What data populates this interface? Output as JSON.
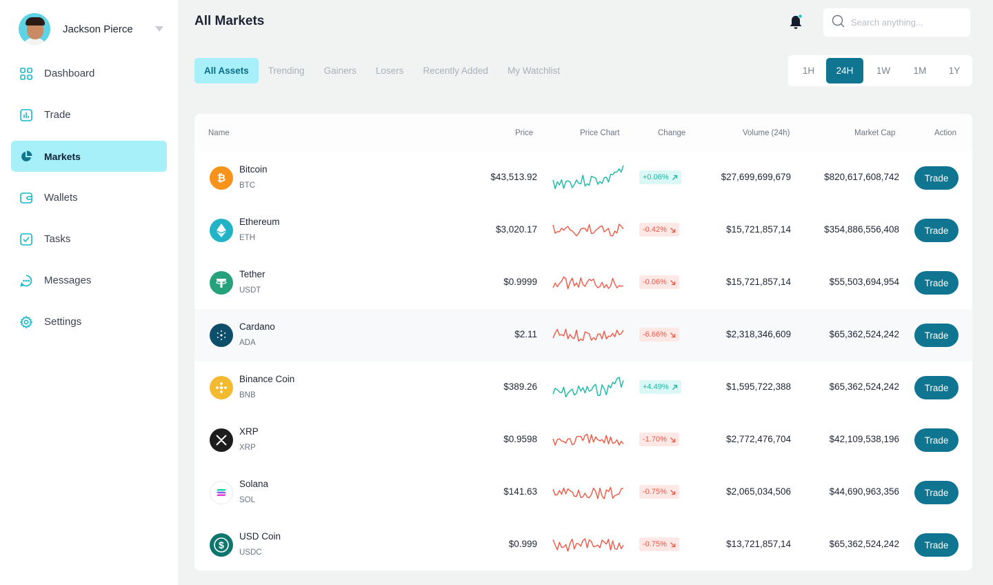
{
  "user": {
    "name": "Jackson Pierce"
  },
  "nav": [
    {
      "label": "Dashboard",
      "icon": "grid-icon",
      "active": false
    },
    {
      "label": "Trade",
      "icon": "bar-chart-icon",
      "active": false
    },
    {
      "label": "Markets",
      "icon": "pie-chart-icon",
      "active": true
    },
    {
      "label": "Wallets",
      "icon": "wallet-icon",
      "active": false
    },
    {
      "label": "Tasks",
      "icon": "checkbox-icon",
      "active": false
    },
    {
      "label": "Messages",
      "icon": "chat-icon",
      "active": false
    },
    {
      "label": "Settings",
      "icon": "gear-icon",
      "active": false
    }
  ],
  "header": {
    "title": "All Markets",
    "search_placeholder": "Search anything..."
  },
  "tabs": [
    {
      "label": "All Assets",
      "active": true
    },
    {
      "label": "Trending",
      "active": false
    },
    {
      "label": "Gainers",
      "active": false
    },
    {
      "label": "Losers",
      "active": false
    },
    {
      "label": "Recently Added",
      "active": false
    },
    {
      "label": "My Watchlist",
      "active": false
    }
  ],
  "timeframes": [
    {
      "label": "1H",
      "active": false
    },
    {
      "label": "24H",
      "active": true
    },
    {
      "label": "1W",
      "active": false
    },
    {
      "label": "1M",
      "active": false
    },
    {
      "label": "1Y",
      "active": false
    }
  ],
  "table": {
    "columns": {
      "name": "Name",
      "price": "Price",
      "chart": "Price Chart",
      "change": "Change",
      "volume": "Volume (24h)",
      "market_cap": "Market Cap",
      "action": "Action"
    },
    "action_label": "Trade",
    "colors": {
      "up": "#15b8a4",
      "down": "#ef5643"
    },
    "rows": [
      {
        "name": "Bitcoin",
        "symbol": "BTC",
        "price": "$43,513.92",
        "change": "+0.06%",
        "direction": "up",
        "volume": "$27,699,699,679",
        "market_cap": "$820,617,608,742",
        "icon": "bitcoin-icon",
        "icon_color": "#f7931a",
        "highlight": false
      },
      {
        "name": "Ethereum",
        "symbol": "ETH",
        "price": "$3,020.17",
        "change": "-0.42%",
        "direction": "down",
        "volume": "$15,721,857,14",
        "market_cap": "$354,886,556,408",
        "icon": "ethereum-icon",
        "icon_color": "#22b3c7",
        "highlight": false
      },
      {
        "name": "Tether",
        "symbol": "USDT",
        "price": "$0.9999",
        "change": "-0.06%",
        "direction": "down",
        "volume": "$15,721,857,14",
        "market_cap": "$55,503,694,954",
        "icon": "tether-icon",
        "icon_color": "#26a17b",
        "highlight": false
      },
      {
        "name": "Cardano",
        "symbol": "ADA",
        "price": "$2.11",
        "change": "-6.66%",
        "direction": "down",
        "volume": "$2,318,346,609",
        "market_cap": "$65,362,524,242",
        "icon": "cardano-icon",
        "icon_color": "#0d4f6b",
        "highlight": true
      },
      {
        "name": "Binance Coin",
        "symbol": "BNB",
        "price": "$389.26",
        "change": "+4.49%",
        "direction": "up",
        "volume": "$1,595,722,388",
        "market_cap": "$65,362,524,242",
        "icon": "binance-icon",
        "icon_color": "#f3ba2f",
        "highlight": false
      },
      {
        "name": "XRP",
        "symbol": "XRP",
        "price": "$0.9598",
        "change": "-1.70%",
        "direction": "down",
        "volume": "$2,772,476,704",
        "market_cap": "$42,109,538,196",
        "icon": "xrp-icon",
        "icon_color": "#1d1d1d",
        "highlight": false
      },
      {
        "name": "Solana",
        "symbol": "SOL",
        "price": "$141.63",
        "change": "-0.75%",
        "direction": "down",
        "volume": "$2,065,034,506",
        "market_cap": "$44,690,963,356",
        "icon": "solana-icon",
        "icon_color": "#ffffff",
        "highlight": false
      },
      {
        "name": "USD Coin",
        "symbol": "USDC",
        "price": "$0.999",
        "change": "-0.75%",
        "direction": "down",
        "volume": "$13,721,857,14",
        "market_cap": "$65,362,524,242",
        "icon": "usd-coin-icon",
        "icon_color": "#0f766e",
        "highlight": false
      }
    ]
  }
}
